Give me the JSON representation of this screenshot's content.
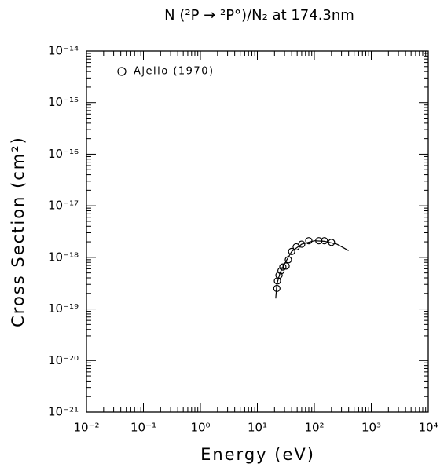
{
  "chart_data": {
    "type": "scatter",
    "title": "N (²P → ²P°)/N₂ at 174.3nm",
    "xlabel": "Energy (eV)",
    "ylabel": "Cross Section (cm²)",
    "xscale": "log",
    "yscale": "log",
    "xlim": [
      0.01,
      10000
    ],
    "ylim": [
      1e-21,
      1e-14
    ],
    "xticks": [
      {
        "value": 0.01,
        "label": "10⁻²"
      },
      {
        "value": 0.1,
        "label": "10⁻¹"
      },
      {
        "value": 1,
        "label": "10⁰"
      },
      {
        "value": 10,
        "label": "10¹"
      },
      {
        "value": 100,
        "label": "10²"
      },
      {
        "value": 1000,
        "label": "10³"
      },
      {
        "value": 10000,
        "label": "10⁴"
      }
    ],
    "yticks": [
      {
        "value": 1e-21,
        "label": "10⁻²¹"
      },
      {
        "value": 1e-20,
        "label": "10⁻²⁰"
      },
      {
        "value": 1e-19,
        "label": "10⁻¹⁹"
      },
      {
        "value": 1e-18,
        "label": "10⁻¹⁸"
      },
      {
        "value": 1e-17,
        "label": "10⁻¹⁷"
      },
      {
        "value": 1e-16,
        "label": "10⁻¹⁶"
      },
      {
        "value": 1e-15,
        "label": "10⁻¹⁵"
      },
      {
        "value": 1e-14,
        "label": "10⁻¹⁴"
      }
    ],
    "legend": "upper left",
    "series": [
      {
        "name": "Ajello (1970)",
        "style": "open-circle",
        "color": "#000000",
        "x": [
          22,
          22.5,
          24,
          26,
          28,
          32,
          35,
          40,
          48,
          60,
          80,
          120,
          150,
          200
        ],
        "values": [
          2.5e-19,
          3.5e-19,
          4.5e-19,
          5.5e-19,
          6.5e-19,
          6.8e-19,
          9e-19,
          1.3e-18,
          1.6e-18,
          1.8e-18,
          2.1e-18,
          2.1e-18,
          2.1e-18,
          1.95e-18
        ]
      },
      {
        "style": "line",
        "color": "#000000",
        "x": [
          21,
          22,
          25,
          30,
          40,
          60,
          100,
          150,
          250,
          400
        ],
        "values": [
          1.6e-19,
          3e-19,
          5e-19,
          7.5e-19,
          1.3e-18,
          1.8e-18,
          2.1e-18,
          2.05e-18,
          1.8e-18,
          1.35e-18
        ]
      }
    ]
  }
}
